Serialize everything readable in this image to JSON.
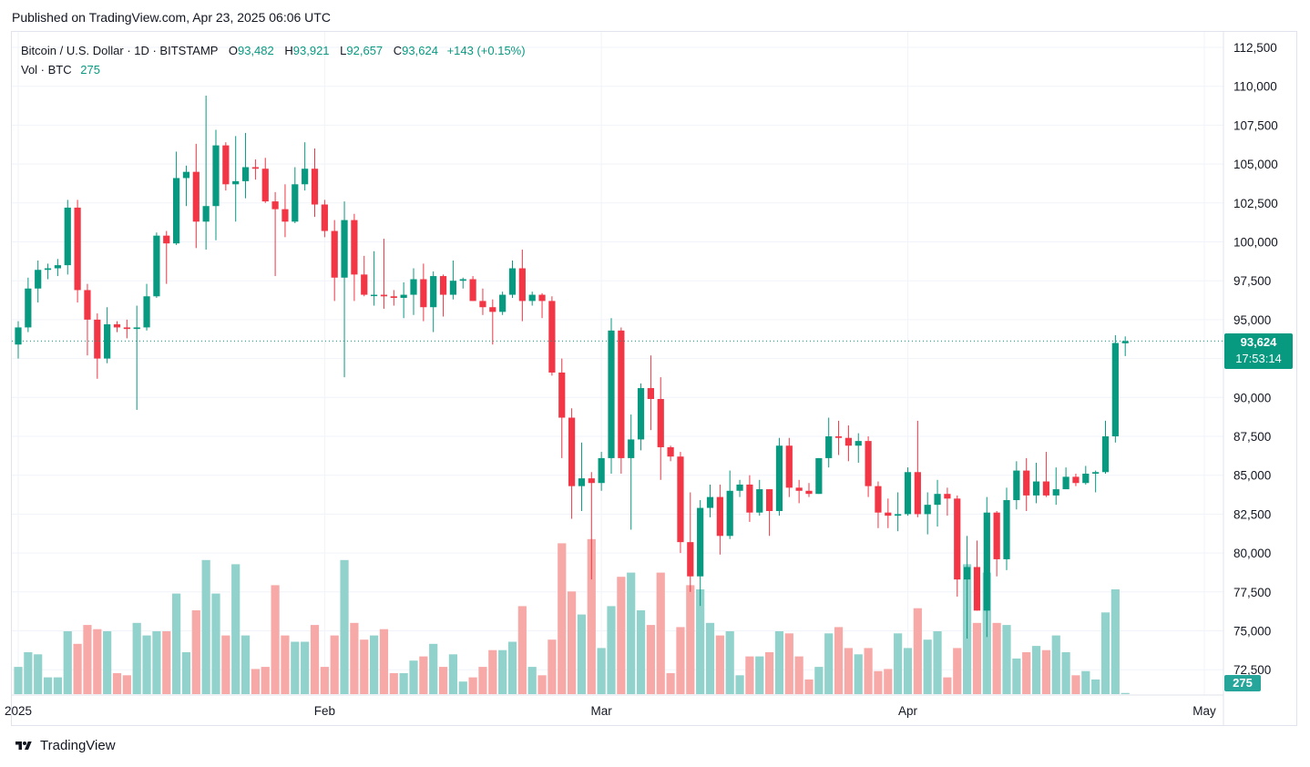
{
  "header": {
    "published": "Published on TradingView.com, Apr 23, 2025 06:06 UTC"
  },
  "legend": {
    "symbol": "Bitcoin / U.S. Dollar · 1D · BITSTAMP",
    "o_label": "O",
    "o_value": "93,482",
    "h_label": "H",
    "h_value": "93,921",
    "l_label": "L",
    "l_value": "92,657",
    "c_label": "C",
    "c_value": "93,624",
    "change": "+143 (+0.15%)",
    "vol_label": "Vol · BTC",
    "vol_value": "275"
  },
  "badges": {
    "last_price": "93,624",
    "countdown": "17:53:14",
    "last_volume": "275"
  },
  "footer": {
    "brand": "TradingView"
  },
  "colors": {
    "up": "#089981",
    "down": "#f23645",
    "up_vol": "#92d2cc",
    "down_vol": "#f7a9a7",
    "grid": "#f0f3fa"
  },
  "chart_data": {
    "type": "candlestick",
    "x_tick_labels": [
      "2025",
      "Feb",
      "Mar",
      "Apr",
      "May"
    ],
    "y_tick_labels": [
      "72,500",
      "75,000",
      "77,500",
      "80,000",
      "82,500",
      "85,000",
      "87,500",
      "90,000",
      "92,500",
      "95,000",
      "97,500",
      "100,000",
      "102,500",
      "105,000",
      "107,500",
      "110,000",
      "112,500"
    ],
    "y_ticks": [
      72500,
      75000,
      77500,
      80000,
      82500,
      85000,
      87500,
      90000,
      92500,
      95000,
      97500,
      100000,
      102500,
      105000,
      107500,
      110000,
      112500
    ],
    "ylim": [
      70500,
      113500
    ],
    "volume_max": 38000,
    "series": [
      {
        "d": "2025-01-01",
        "o": 93400,
        "h": 94900,
        "l": 92500,
        "c": 94500,
        "v": 6500
      },
      {
        "d": "2025-01-02",
        "o": 94500,
        "h": 97700,
        "l": 94200,
        "c": 97000,
        "v": 10000
      },
      {
        "d": "2025-01-03",
        "o": 97000,
        "h": 98800,
        "l": 96100,
        "c": 98200,
        "v": 9500
      },
      {
        "d": "2025-01-04",
        "o": 98200,
        "h": 98600,
        "l": 97600,
        "c": 98300,
        "v": 4000
      },
      {
        "d": "2025-01-05",
        "o": 98300,
        "h": 98900,
        "l": 97800,
        "c": 98500,
        "v": 4000
      },
      {
        "d": "2025-01-06",
        "o": 98500,
        "h": 102700,
        "l": 97900,
        "c": 102200,
        "v": 15000
      },
      {
        "d": "2025-01-07",
        "o": 102200,
        "h": 102700,
        "l": 96100,
        "c": 96900,
        "v": 12000
      },
      {
        "d": "2025-01-08",
        "o": 96900,
        "h": 97300,
        "l": 92700,
        "c": 95000,
        "v": 16500
      },
      {
        "d": "2025-01-09",
        "o": 95000,
        "h": 95400,
        "l": 91200,
        "c": 92500,
        "v": 15500
      },
      {
        "d": "2025-01-10",
        "o": 92500,
        "h": 95800,
        "l": 92200,
        "c": 94700,
        "v": 15000
      },
      {
        "d": "2025-01-11",
        "o": 94700,
        "h": 94900,
        "l": 94200,
        "c": 94500,
        "v": 5000
      },
      {
        "d": "2025-01-12",
        "o": 94500,
        "h": 95000,
        "l": 93800,
        "c": 94400,
        "v": 4500
      },
      {
        "d": "2025-01-13",
        "o": 94400,
        "h": 95900,
        "l": 89200,
        "c": 94500,
        "v": 17000
      },
      {
        "d": "2025-01-14",
        "o": 94500,
        "h": 97300,
        "l": 94300,
        "c": 96500,
        "v": 14000
      },
      {
        "d": "2025-01-15",
        "o": 96500,
        "h": 100600,
        "l": 96400,
        "c": 100400,
        "v": 15000
      },
      {
        "d": "2025-01-16",
        "o": 100400,
        "h": 100700,
        "l": 97300,
        "c": 99900,
        "v": 15000
      },
      {
        "d": "2025-01-17",
        "o": 99900,
        "h": 105800,
        "l": 99800,
        "c": 104100,
        "v": 24000
      },
      {
        "d": "2025-01-18",
        "o": 104100,
        "h": 104900,
        "l": 102300,
        "c": 104500,
        "v": 10000
      },
      {
        "d": "2025-01-19",
        "o": 104500,
        "h": 106300,
        "l": 99600,
        "c": 101300,
        "v": 20000
      },
      {
        "d": "2025-01-20",
        "o": 101300,
        "h": 109400,
        "l": 99500,
        "c": 102300,
        "v": 32000
      },
      {
        "d": "2025-01-21",
        "o": 102300,
        "h": 107200,
        "l": 100100,
        "c": 106200,
        "v": 24000
      },
      {
        "d": "2025-01-22",
        "o": 106200,
        "h": 106400,
        "l": 103300,
        "c": 103700,
        "v": 14000
      },
      {
        "d": "2025-01-23",
        "o": 103700,
        "h": 106800,
        "l": 101300,
        "c": 103900,
        "v": 31000
      },
      {
        "d": "2025-01-24",
        "o": 103900,
        "h": 107000,
        "l": 102800,
        "c": 104800,
        "v": 14000
      },
      {
        "d": "2025-01-25",
        "o": 104800,
        "h": 105300,
        "l": 104000,
        "c": 104700,
        "v": 6000
      },
      {
        "d": "2025-01-26",
        "o": 104700,
        "h": 105400,
        "l": 102500,
        "c": 102600,
        "v": 6500
      },
      {
        "d": "2025-01-27",
        "o": 102600,
        "h": 103200,
        "l": 97800,
        "c": 102100,
        "v": 26000
      },
      {
        "d": "2025-01-28",
        "o": 102100,
        "h": 103700,
        "l": 100300,
        "c": 101300,
        "v": 14000
      },
      {
        "d": "2025-01-29",
        "o": 101300,
        "h": 104800,
        "l": 101200,
        "c": 103700,
        "v": 12500
      },
      {
        "d": "2025-01-30",
        "o": 103700,
        "h": 106400,
        "l": 103300,
        "c": 104700,
        "v": 12500
      },
      {
        "d": "2025-01-31",
        "o": 104700,
        "h": 106000,
        "l": 101600,
        "c": 102400,
        "v": 16500
      },
      {
        "d": "2025-02-01",
        "o": 102400,
        "h": 102700,
        "l": 100300,
        "c": 100700,
        "v": 6500
      },
      {
        "d": "2025-02-02",
        "o": 100700,
        "h": 101400,
        "l": 96200,
        "c": 97700,
        "v": 14000
      },
      {
        "d": "2025-02-03",
        "o": 97700,
        "h": 102600,
        "l": 91300,
        "c": 101400,
        "v": 32000
      },
      {
        "d": "2025-02-04",
        "o": 101400,
        "h": 101800,
        "l": 96200,
        "c": 97900,
        "v": 17000
      },
      {
        "d": "2025-02-05",
        "o": 97900,
        "h": 99100,
        "l": 96500,
        "c": 96600,
        "v": 13000
      },
      {
        "d": "2025-02-06",
        "o": 96600,
        "h": 99400,
        "l": 95900,
        "c": 96600,
        "v": 14000
      },
      {
        "d": "2025-02-07",
        "o": 96600,
        "h": 100200,
        "l": 95700,
        "c": 96500,
        "v": 15500
      },
      {
        "d": "2025-02-08",
        "o": 96500,
        "h": 96900,
        "l": 95900,
        "c": 96400,
        "v": 5000
      },
      {
        "d": "2025-02-09",
        "o": 96400,
        "h": 97400,
        "l": 95100,
        "c": 96600,
        "v": 5000
      },
      {
        "d": "2025-02-10",
        "o": 96600,
        "h": 98300,
        "l": 95300,
        "c": 97600,
        "v": 8000
      },
      {
        "d": "2025-02-11",
        "o": 97600,
        "h": 98600,
        "l": 94900,
        "c": 95800,
        "v": 9000
      },
      {
        "d": "2025-02-12",
        "o": 95800,
        "h": 98100,
        "l": 94200,
        "c": 97800,
        "v": 12000
      },
      {
        "d": "2025-02-13",
        "o": 97800,
        "h": 97900,
        "l": 95200,
        "c": 96600,
        "v": 6500
      },
      {
        "d": "2025-02-14",
        "o": 96600,
        "h": 98800,
        "l": 96300,
        "c": 97500,
        "v": 9500
      },
      {
        "d": "2025-02-15",
        "o": 97500,
        "h": 97700,
        "l": 97000,
        "c": 97600,
        "v": 3000
      },
      {
        "d": "2025-02-16",
        "o": 97600,
        "h": 97800,
        "l": 96200,
        "c": 96200,
        "v": 4000
      },
      {
        "d": "2025-02-17",
        "o": 96200,
        "h": 97000,
        "l": 95300,
        "c": 95800,
        "v": 6500
      },
      {
        "d": "2025-02-18",
        "o": 95800,
        "h": 96300,
        "l": 93400,
        "c": 95500,
        "v": 10500
      },
      {
        "d": "2025-02-19",
        "o": 95500,
        "h": 96800,
        "l": 95300,
        "c": 96600,
        "v": 10500
      },
      {
        "d": "2025-02-20",
        "o": 96600,
        "h": 98800,
        "l": 96400,
        "c": 98300,
        "v": 12500
      },
      {
        "d": "2025-02-21",
        "o": 98300,
        "h": 99500,
        "l": 94900,
        "c": 96200,
        "v": 21000
      },
      {
        "d": "2025-02-22",
        "o": 96200,
        "h": 96800,
        "l": 95900,
        "c": 96600,
        "v": 6500
      },
      {
        "d": "2025-02-23",
        "o": 96600,
        "h": 96700,
        "l": 95100,
        "c": 96200,
        "v": 4500
      },
      {
        "d": "2025-02-24",
        "o": 96200,
        "h": 96500,
        "l": 91400,
        "c": 91600,
        "v": 13000
      },
      {
        "d": "2025-02-25",
        "o": 91600,
        "h": 92500,
        "l": 86100,
        "c": 88700,
        "v": 36000
      },
      {
        "d": "2025-02-26",
        "o": 88700,
        "h": 89300,
        "l": 82200,
        "c": 84300,
        "v": 24500
      },
      {
        "d": "2025-02-27",
        "o": 84300,
        "h": 87100,
        "l": 82700,
        "c": 84800,
        "v": 19000
      },
      {
        "d": "2025-02-28",
        "o": 84800,
        "h": 85200,
        "l": 78300,
        "c": 84500,
        "v": 37000
      },
      {
        "d": "2025-03-01",
        "o": 84500,
        "h": 86500,
        "l": 84000,
        "c": 86100,
        "v": 11000
      },
      {
        "d": "2025-03-02",
        "o": 86100,
        "h": 95100,
        "l": 85100,
        "c": 94300,
        "v": 21000
      },
      {
        "d": "2025-03-03",
        "o": 94300,
        "h": 94500,
        "l": 85100,
        "c": 86100,
        "v": 28000
      },
      {
        "d": "2025-03-04",
        "o": 86100,
        "h": 88900,
        "l": 81500,
        "c": 87300,
        "v": 29000
      },
      {
        "d": "2025-03-05",
        "o": 87300,
        "h": 90900,
        "l": 86600,
        "c": 90600,
        "v": 20000
      },
      {
        "d": "2025-03-06",
        "o": 90600,
        "h": 92700,
        "l": 87900,
        "c": 89900,
        "v": 16500
      },
      {
        "d": "2025-03-07",
        "o": 89900,
        "h": 91300,
        "l": 84700,
        "c": 86800,
        "v": 29000
      },
      {
        "d": "2025-03-08",
        "o": 86800,
        "h": 86900,
        "l": 85900,
        "c": 86200,
        "v": 5000
      },
      {
        "d": "2025-03-09",
        "o": 86200,
        "h": 86500,
        "l": 80000,
        "c": 80700,
        "v": 16000
      },
      {
        "d": "2025-03-10",
        "o": 80700,
        "h": 83900,
        "l": 77500,
        "c": 78500,
        "v": 26000
      },
      {
        "d": "2025-03-11",
        "o": 78500,
        "h": 83400,
        "l": 76600,
        "c": 82900,
        "v": 25000
      },
      {
        "d": "2025-03-12",
        "o": 82900,
        "h": 84400,
        "l": 82300,
        "c": 83600,
        "v": 17000
      },
      {
        "d": "2025-03-13",
        "o": 83600,
        "h": 84400,
        "l": 79900,
        "c": 81100,
        "v": 14000
      },
      {
        "d": "2025-03-14",
        "o": 81100,
        "h": 85300,
        "l": 80900,
        "c": 84000,
        "v": 15000
      },
      {
        "d": "2025-03-15",
        "o": 84000,
        "h": 84700,
        "l": 83600,
        "c": 84400,
        "v": 4500
      },
      {
        "d": "2025-03-16",
        "o": 84400,
        "h": 85000,
        "l": 82000,
        "c": 82600,
        "v": 9000
      },
      {
        "d": "2025-03-17",
        "o": 82600,
        "h": 84700,
        "l": 82400,
        "c": 84100,
        "v": 9000
      },
      {
        "d": "2025-03-18",
        "o": 84100,
        "h": 84100,
        "l": 81100,
        "c": 82700,
        "v": 10000
      },
      {
        "d": "2025-03-19",
        "o": 82700,
        "h": 87400,
        "l": 82400,
        "c": 86900,
        "v": 15000
      },
      {
        "d": "2025-03-20",
        "o": 86900,
        "h": 87400,
        "l": 83600,
        "c": 84200,
        "v": 14500
      },
      {
        "d": "2025-03-21",
        "o": 84200,
        "h": 84700,
        "l": 83200,
        "c": 84000,
        "v": 9000
      },
      {
        "d": "2025-03-22",
        "o": 84000,
        "h": 84500,
        "l": 83600,
        "c": 83800,
        "v": 3500
      },
      {
        "d": "2025-03-23",
        "o": 83800,
        "h": 86100,
        "l": 83800,
        "c": 86100,
        "v": 6500
      },
      {
        "d": "2025-03-24",
        "o": 86100,
        "h": 88700,
        "l": 85500,
        "c": 87500,
        "v": 14500
      },
      {
        "d": "2025-03-25",
        "o": 87500,
        "h": 88500,
        "l": 86300,
        "c": 87400,
        "v": 16000
      },
      {
        "d": "2025-03-26",
        "o": 87400,
        "h": 88200,
        "l": 85900,
        "c": 86900,
        "v": 11000
      },
      {
        "d": "2025-03-27",
        "o": 86900,
        "h": 87700,
        "l": 85800,
        "c": 87200,
        "v": 9500
      },
      {
        "d": "2025-03-28",
        "o": 87200,
        "h": 87500,
        "l": 83600,
        "c": 84300,
        "v": 11000
      },
      {
        "d": "2025-03-29",
        "o": 84300,
        "h": 84600,
        "l": 81600,
        "c": 82600,
        "v": 5500
      },
      {
        "d": "2025-03-30",
        "o": 82600,
        "h": 83500,
        "l": 81600,
        "c": 82400,
        "v": 6000
      },
      {
        "d": "2025-03-31",
        "o": 82400,
        "h": 83900,
        "l": 81400,
        "c": 82500,
        "v": 14500
      },
      {
        "d": "2025-04-01",
        "o": 82500,
        "h": 85500,
        "l": 82400,
        "c": 85200,
        "v": 11000
      },
      {
        "d": "2025-04-02",
        "o": 85200,
        "h": 88500,
        "l": 82300,
        "c": 82500,
        "v": 20500
      },
      {
        "d": "2025-04-03",
        "o": 82500,
        "h": 83900,
        "l": 81200,
        "c": 83100,
        "v": 13000
      },
      {
        "d": "2025-04-04",
        "o": 83100,
        "h": 84700,
        "l": 81700,
        "c": 83800,
        "v": 15000
      },
      {
        "d": "2025-04-05",
        "o": 83800,
        "h": 84200,
        "l": 82400,
        "c": 83500,
        "v": 4000
      },
      {
        "d": "2025-04-06",
        "o": 83500,
        "h": 83700,
        "l": 77200,
        "c": 78300,
        "v": 11000
      },
      {
        "d": "2025-04-07",
        "o": 78300,
        "h": 81100,
        "l": 74500,
        "c": 79100,
        "v": 31000
      },
      {
        "d": "2025-04-08",
        "o": 79100,
        "h": 80800,
        "l": 76300,
        "c": 76300,
        "v": 17000
      },
      {
        "d": "2025-04-09",
        "o": 76300,
        "h": 83600,
        "l": 74600,
        "c": 82600,
        "v": 29000
      },
      {
        "d": "2025-04-10",
        "o": 82600,
        "h": 82700,
        "l": 78500,
        "c": 79600,
        "v": 17000
      },
      {
        "d": "2025-04-11",
        "o": 79600,
        "h": 84200,
        "l": 78900,
        "c": 83400,
        "v": 16500
      },
      {
        "d": "2025-04-12",
        "o": 83400,
        "h": 85900,
        "l": 82800,
        "c": 85300,
        "v": 8500
      },
      {
        "d": "2025-04-13",
        "o": 85300,
        "h": 86100,
        "l": 82700,
        "c": 83700,
        "v": 10000
      },
      {
        "d": "2025-04-14",
        "o": 83700,
        "h": 85800,
        "l": 83200,
        "c": 84600,
        "v": 11500
      },
      {
        "d": "2025-04-15",
        "o": 84600,
        "h": 86500,
        "l": 83600,
        "c": 83700,
        "v": 10500
      },
      {
        "d": "2025-04-16",
        "o": 83700,
        "h": 85500,
        "l": 83100,
        "c": 84100,
        "v": 14000
      },
      {
        "d": "2025-04-17",
        "o": 84100,
        "h": 85500,
        "l": 84100,
        "c": 84900,
        "v": 10000
      },
      {
        "d": "2025-04-18",
        "o": 84900,
        "h": 85100,
        "l": 84300,
        "c": 84500,
        "v": 4500
      },
      {
        "d": "2025-04-19",
        "o": 84500,
        "h": 85600,
        "l": 84400,
        "c": 85100,
        "v": 5500
      },
      {
        "d": "2025-04-20",
        "o": 85100,
        "h": 85300,
        "l": 83900,
        "c": 85200,
        "v": 3500
      },
      {
        "d": "2025-04-21",
        "o": 85200,
        "h": 88500,
        "l": 85100,
        "c": 87500,
        "v": 19500
      },
      {
        "d": "2025-04-22",
        "o": 87500,
        "h": 94000,
        "l": 87100,
        "c": 93500,
        "v": 25000
      },
      {
        "d": "2025-04-23",
        "o": 93482,
        "h": 93921,
        "l": 92657,
        "c": 93624,
        "v": 275
      }
    ]
  }
}
